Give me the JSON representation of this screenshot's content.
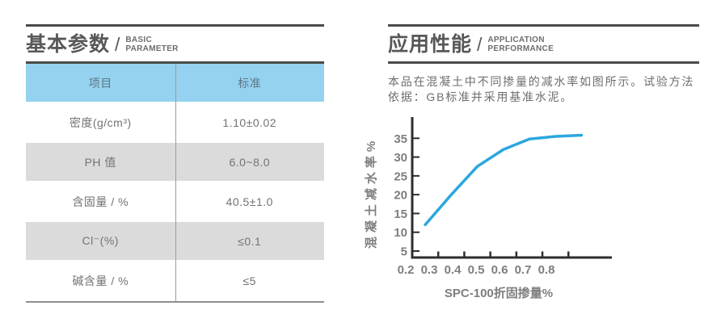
{
  "left_section": {
    "title_zh": "基本参数",
    "separator": "/",
    "title_en_line1": "BASIC",
    "title_en_line2": "PARAMETER",
    "table": {
      "columns": [
        "项目",
        "标准"
      ],
      "rows": [
        {
          "item": "密度(g/cm³)",
          "standard": "1.10±0.02"
        },
        {
          "item": "PH 值",
          "standard": "6.0~8.0"
        },
        {
          "item": "含固量 / %",
          "standard": "40.5±1.0"
        },
        {
          "item": "Cl⁻(%)",
          "standard": "≤0.1"
        },
        {
          "item": "碱含量 / %",
          "standard": "≤5"
        }
      ],
      "header_bg": "#94d2ef",
      "zebra_bg": "#dbdbdb"
    }
  },
  "right_section": {
    "title_zh": "应用性能",
    "separator": "/",
    "title_en_line1": "APPLICATION",
    "title_en_line2": "PERFORMANCE",
    "description": "本品在混凝土中不同掺量的减水率如图所示。试验方法依据：GB标准并采用基准水泥。"
  },
  "chart_data": {
    "type": "line",
    "title": "",
    "xlabel": "SPC-100折固掺量%",
    "ylabel": "混凝土减水率%",
    "x": [
      0.25,
      0.35,
      0.45,
      0.55,
      0.65,
      0.75,
      0.85
    ],
    "y": [
      12,
      20,
      27.5,
      32,
      34.8,
      35.5,
      35.8
    ],
    "x_tick_labels": [
      "0.2",
      "0.3",
      "0.4",
      "0.5",
      "0.6",
      "0.7",
      "0.8"
    ],
    "y_tick_labels": [
      "5",
      "10",
      "15",
      "20",
      "25",
      "30",
      "35"
    ],
    "xlim": [
      0.2,
      0.97
    ],
    "ylim": [
      5,
      40
    ],
    "line_color": "#2ba7df",
    "axis_color": "#2e2e2e",
    "text_color": "#7e7e7e",
    "grid": false,
    "legend": false
  }
}
